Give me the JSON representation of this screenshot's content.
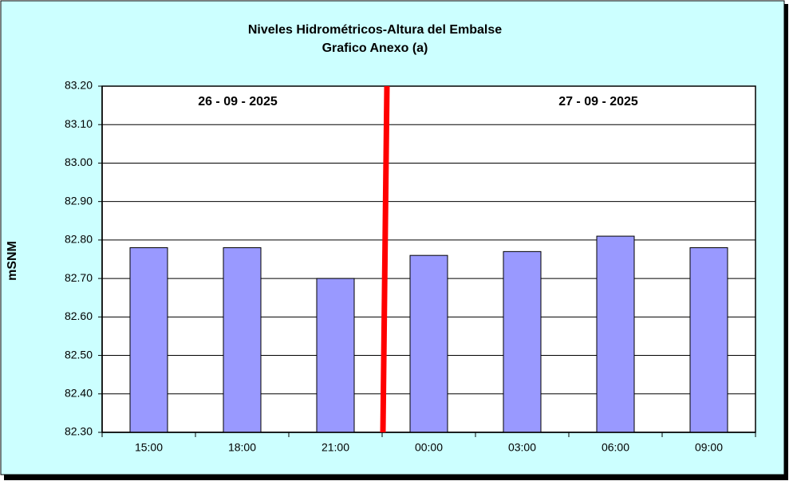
{
  "chart_data": {
    "type": "bar",
    "title": "Niveles Hidrométricos-Altura del Embalse",
    "subtitle": "Grafico Anexo (a)",
    "y_label": "mSNM",
    "annotations": [
      "26 - 09 - 2025",
      "27 - 09 - 2025"
    ],
    "categories": [
      "15:00",
      "18:00",
      "21:00",
      "00:00",
      "03:00",
      "06:00",
      "09:00"
    ],
    "values": [
      82.78,
      82.78,
      82.7,
      82.76,
      82.77,
      82.81,
      82.78
    ],
    "color": "#9999ff",
    "ylim": [
      82.3,
      83.2
    ],
    "yticks": [
      {
        "value": 82.3,
        "label": "82.30"
      },
      {
        "value": 82.4,
        "label": "82.40"
      },
      {
        "value": 82.5,
        "label": "82.50"
      },
      {
        "value": 82.6,
        "label": "82.60"
      },
      {
        "value": 82.7,
        "label": "82.70"
      },
      {
        "value": 82.8,
        "label": "82.80"
      },
      {
        "value": 82.9,
        "label": "82.90"
      },
      {
        "value": 83.0,
        "label": "83.00"
      },
      {
        "value": 83.1,
        "label": "83.10"
      },
      {
        "value": 83.2,
        "label": "83.20"
      }
    ],
    "grid": true
  }
}
